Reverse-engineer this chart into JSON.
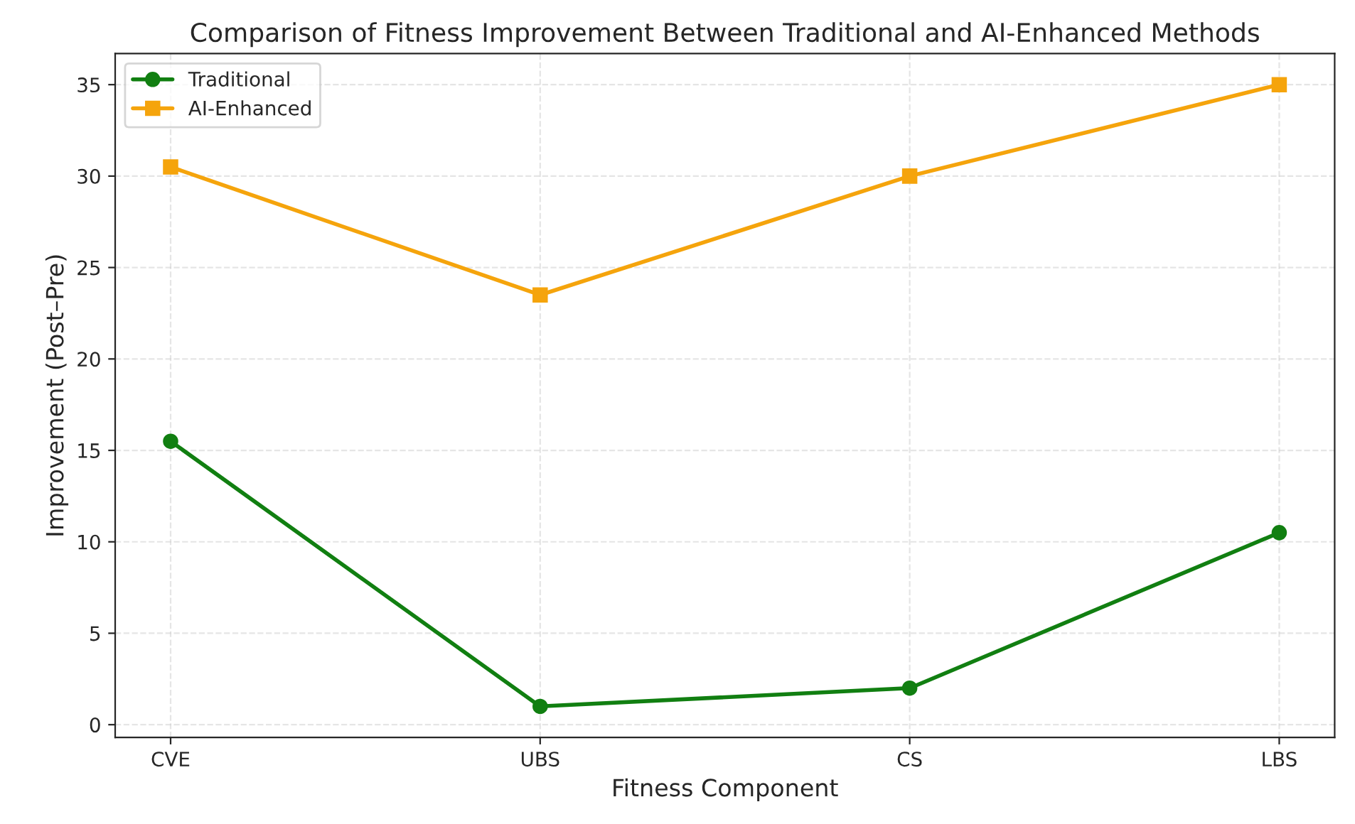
{
  "chart_data": {
    "type": "line",
    "title": "Comparison of Fitness Improvement Between Traditional and AI-Enhanced Methods",
    "xlabel": "Fitness Component",
    "ylabel": "Improvement (Post–Pre)",
    "categories": [
      "CVE",
      "UBS",
      "CS",
      "LBS"
    ],
    "series": [
      {
        "name": "Traditional",
        "color": "#117f11",
        "marker": "circle",
        "values": [
          15.5,
          1,
          2,
          10.5
        ]
      },
      {
        "name": "AI-Enhanced",
        "color": "#f5a40c",
        "marker": "square",
        "values": [
          30.5,
          23.5,
          30,
          35
        ]
      }
    ],
    "ylim": [
      -0.7,
      36.7
    ],
    "yticks": [
      0,
      5,
      10,
      15,
      20,
      25,
      30,
      35
    ],
    "grid": true,
    "legend": "top left",
    "line_style": "solid"
  }
}
